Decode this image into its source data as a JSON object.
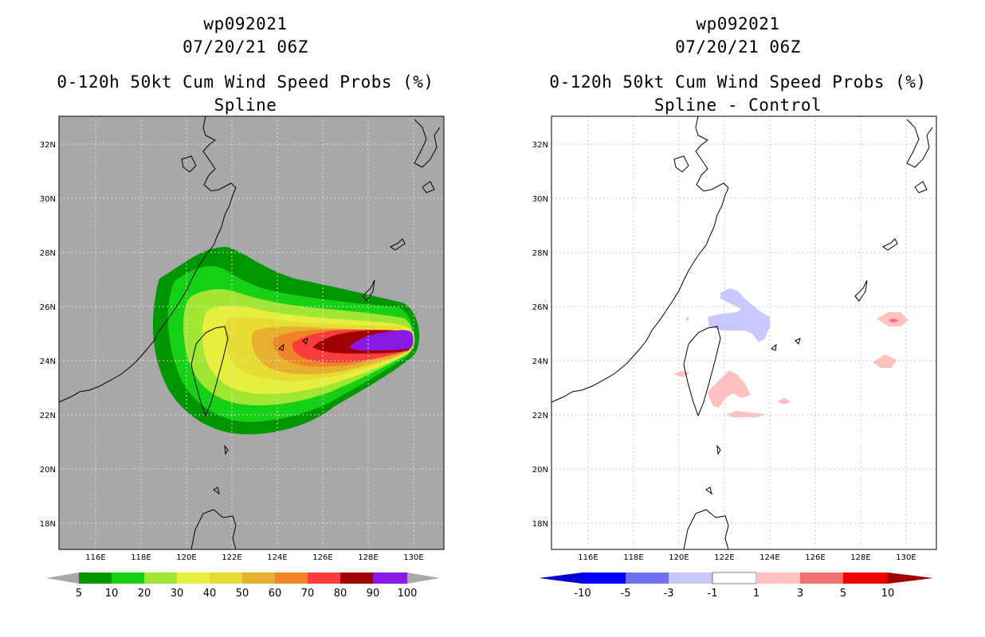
{
  "left_panel": {
    "title1": "wp092021",
    "title2": "07/20/21 06Z",
    "title3": "0-120h 50kt Cum Wind Speed Probs (%)",
    "title4": "Spline",
    "background_color": "#a8a8a8",
    "lon_labels": [
      "116E",
      "118E",
      "120E",
      "122E",
      "124E",
      "126E",
      "128E",
      "130E"
    ],
    "lat_labels": [
      "32N",
      "30N",
      "28N",
      "26N",
      "24N",
      "22N",
      "20N",
      "18N"
    ],
    "colorbar": {
      "labels": [
        "5",
        "10",
        "20",
        "30",
        "40",
        "50",
        "60",
        "70",
        "80",
        "90",
        "100"
      ],
      "colors": [
        "#009600",
        "#16d016",
        "#a0e632",
        "#e6f03c",
        "#e6dc32",
        "#e6af2d",
        "#f08228",
        "#fa3c3c",
        "#a00000",
        "#8c18e6"
      ]
    }
  },
  "right_panel": {
    "title1": "wp092021",
    "title2": "07/20/21 06Z",
    "title3": "0-120h 50kt Cum Wind Speed Probs (%)",
    "title4": "Spline - Control",
    "background_color": "#ffffff",
    "lon_labels": [
      "116E",
      "118E",
      "120E",
      "122E",
      "124E",
      "126E",
      "128E",
      "130E"
    ],
    "lat_labels": [
      "32N",
      "30N",
      "28N",
      "26N",
      "24N",
      "22N",
      "20N",
      "18N"
    ],
    "colorbar": {
      "labels": [
        "-10",
        "-5",
        "-3",
        "-1",
        "1",
        "3",
        "5",
        "10"
      ],
      "colors": [
        "#0000d2",
        "#0000ff",
        "#7070f0",
        "#c8c8ff",
        "#ffffff",
        "#ffc0c0",
        "#f07070",
        "#f00000",
        "#a00000"
      ]
    }
  }
}
